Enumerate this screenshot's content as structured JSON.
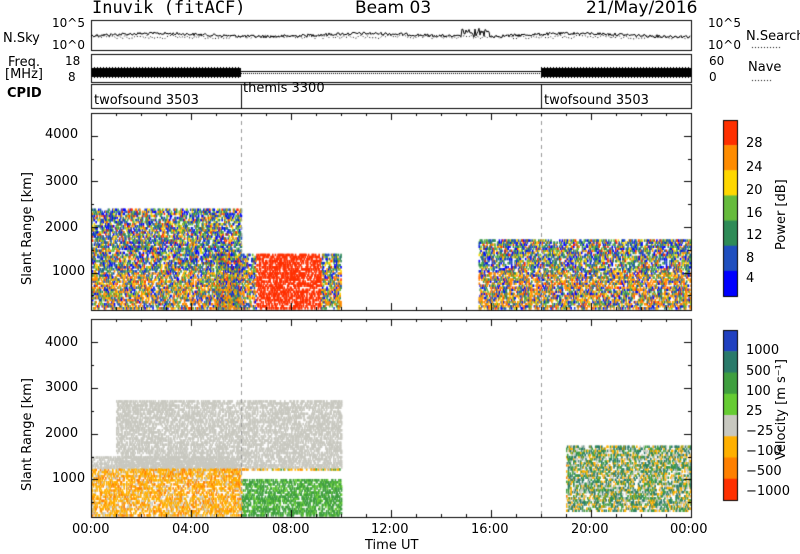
{
  "header": {
    "title": "Inuvik (fitACF)",
    "beam": "Beam 03",
    "date": "21/May/2016"
  },
  "status_panels": {
    "nsky_label": "N.Sky",
    "nsky_ticks": [
      "10^5",
      "10^0"
    ],
    "nsearch_label": "N.Search",
    "nsearch_ticks": [
      "10^5",
      "10^0"
    ],
    "freq_label_1": "Freq.",
    "freq_label_2": "[MHz]",
    "freq_ticks": [
      "18",
      "8"
    ],
    "nave_label": "Nave",
    "nave_ticks": [
      "60",
      "0"
    ],
    "cpid_label": "CPID"
  },
  "cpid_segments": [
    {
      "label": "twofsound 3503",
      "start_h": 0,
      "end_h": 6
    },
    {
      "label": "themis 3300",
      "start_h": 6,
      "end_h": 18
    },
    {
      "label": "twofsound 3503",
      "start_h": 18,
      "end_h": 24
    }
  ],
  "chart_data": [
    {
      "type": "heatmap",
      "title": "Power",
      "xlabel": "Time UT",
      "ylabel": "Slant Range [km]",
      "xlim": [
        0,
        24
      ],
      "ylim": [
        180,
        4500
      ],
      "x_ticks": [
        "00:00",
        "04:00",
        "08:00",
        "12:00",
        "16:00",
        "20:00",
        "00:00"
      ],
      "y_ticks": [
        "1000",
        "2000",
        "3000",
        "4000"
      ],
      "colorbar_label": "Power [dB]",
      "colorbar_ticks": [
        "4",
        "8",
        "12",
        "16",
        "20",
        "24",
        "28"
      ],
      "colorbar_colors": [
        "#0000ff",
        "#1f4fbf",
        "#2e8b57",
        "#66bb3c",
        "#ffd700",
        "#ff8c00",
        "#ff3000"
      ],
      "scatter_regions": [
        {
          "t0": 0.0,
          "t1": 6.0,
          "r0": 200,
          "r1": 2400,
          "value": "high",
          "note": "2-30 dB patchy echoes"
        },
        {
          "t0": 5.0,
          "t1": 10.0,
          "r0": 200,
          "r1": 1400,
          "value": "high",
          "note": "strong 28+ dB near 07-09 UT"
        },
        {
          "t0": 15.5,
          "t1": 24.0,
          "r0": 200,
          "r1": 1700,
          "value": "mixed",
          "note": "4-28 dB"
        }
      ]
    },
    {
      "type": "heatmap",
      "title": "Velocity",
      "xlabel": "Time UT",
      "ylabel": "Slant Range [km]",
      "xlim": [
        0,
        24
      ],
      "ylim": [
        180,
        4500
      ],
      "x_ticks": [
        "00:00",
        "04:00",
        "08:00",
        "12:00",
        "16:00",
        "20:00",
        "00:00"
      ],
      "y_ticks": [
        "1000",
        "2000",
        "3000",
        "4000"
      ],
      "colorbar_label": "Velocity [m s⁻¹]",
      "colorbar_ticks": [
        "1000",
        "500",
        "100",
        "25",
        "−25",
        "−100",
        "−500",
        "−1000"
      ],
      "colorbar_colors": [
        "#2040c0",
        "#2a7a6a",
        "#3f9f3f",
        "#66cc33",
        "#c8c8c0",
        "#ffb000",
        "#ff8000",
        "#ff3000"
      ],
      "scatter_regions": [
        {
          "t0": 0.0,
          "t1": 6.0,
          "r0": 200,
          "r1": 1500,
          "value": "negative",
          "note": "orange, -100 to -500"
        },
        {
          "t0": 1.0,
          "t1": 10.0,
          "r0": 1200,
          "r1": 2700,
          "value": "ground",
          "note": "grey, -25 to 25"
        },
        {
          "t0": 6.0,
          "t1": 10.0,
          "r0": 200,
          "r1": 1000,
          "value": "positive",
          "note": "green, 100-500"
        },
        {
          "t0": 19.0,
          "t1": 24.0,
          "r0": 300,
          "r1": 1700,
          "value": "mixed",
          "note": "blue/green/orange"
        }
      ]
    }
  ]
}
